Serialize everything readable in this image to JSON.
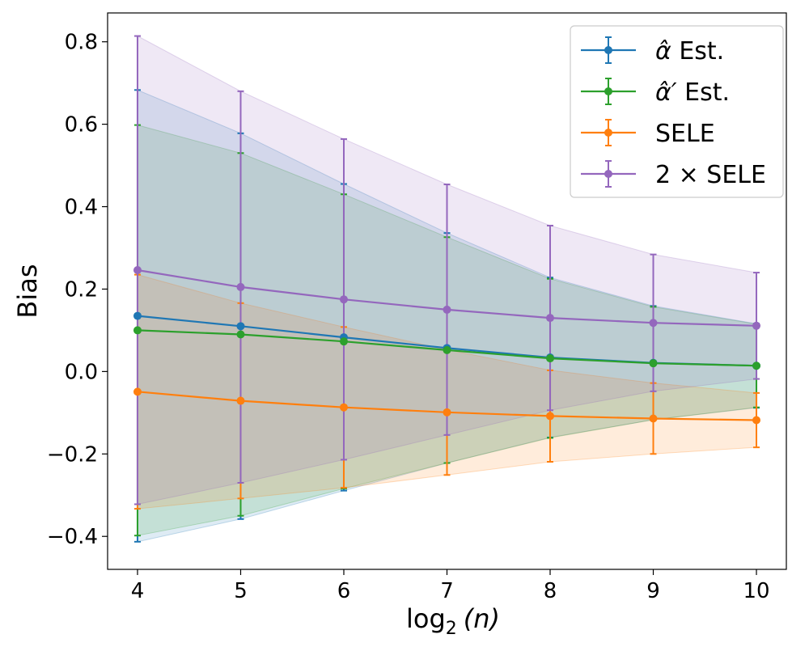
{
  "chart_data": {
    "type": "line",
    "title": "",
    "xlabel": "log",
    "xlabel_sub": "2",
    "xlabel_arg": "(n)",
    "ylabel": "Bias",
    "x": [
      4,
      5,
      6,
      7,
      8,
      9,
      10
    ],
    "xlim": [
      3.71,
      10.29
    ],
    "ylim": [
      -0.48,
      0.87
    ],
    "xticks": [
      4,
      5,
      6,
      7,
      8,
      9,
      10
    ],
    "xtick_labels": [
      "4",
      "5",
      "6",
      "7",
      "8",
      "9",
      "10"
    ],
    "yticks": [
      -0.4,
      -0.2,
      0.0,
      0.2,
      0.4,
      0.6,
      0.8
    ],
    "ytick_labels": [
      "−0.4",
      "−0.2",
      "0.0",
      "0.2",
      "0.4",
      "0.6",
      "0.8"
    ],
    "grid": false,
    "legend_position": "top-right",
    "series": [
      {
        "name": "alpha-hat-est",
        "label_sym": "α̂",
        "label_tail": " Est.",
        "color": "#1f77b4",
        "values": [
          0.135,
          0.11,
          0.083,
          0.057,
          0.034,
          0.021,
          0.014
        ],
        "upper": [
          0.683,
          0.578,
          0.455,
          0.336,
          0.228,
          0.159,
          0.116
        ],
        "lower": [
          -0.413,
          -0.358,
          -0.289,
          -0.222,
          -0.16,
          -0.117,
          -0.088
        ]
      },
      {
        "name": "alpha-hat-prime-est",
        "label_sym": "α̂′",
        "label_tail": " Est.",
        "color": "#2ca02c",
        "values": [
          0.1,
          0.09,
          0.073,
          0.052,
          0.032,
          0.02,
          0.014
        ],
        "upper": [
          0.598,
          0.53,
          0.43,
          0.326,
          0.225,
          0.157,
          0.115
        ],
        "lower": [
          -0.398,
          -0.35,
          -0.284,
          -0.222,
          -0.161,
          -0.117,
          -0.087
        ]
      },
      {
        "name": "sele",
        "label_sym": "",
        "label_tail": "SELE",
        "color": "#ff7f0e",
        "values": [
          -0.049,
          -0.071,
          -0.087,
          -0.099,
          -0.108,
          -0.114,
          -0.118
        ],
        "upper": [
          0.235,
          0.166,
          0.108,
          0.053,
          0.003,
          -0.028,
          -0.052
        ],
        "lower": [
          -0.333,
          -0.308,
          -0.282,
          -0.251,
          -0.219,
          -0.2,
          -0.184
        ]
      },
      {
        "name": "two-times-sele",
        "label_sym": "",
        "label_tail": "2 × SELE",
        "color": "#9467bd",
        "values": [
          0.246,
          0.205,
          0.175,
          0.15,
          0.13,
          0.118,
          0.111
        ],
        "upper": [
          0.814,
          0.68,
          0.564,
          0.454,
          0.354,
          0.284,
          0.24
        ],
        "lower": [
          -0.322,
          -0.27,
          -0.214,
          -0.154,
          -0.094,
          -0.048,
          -0.018
        ]
      }
    ]
  }
}
